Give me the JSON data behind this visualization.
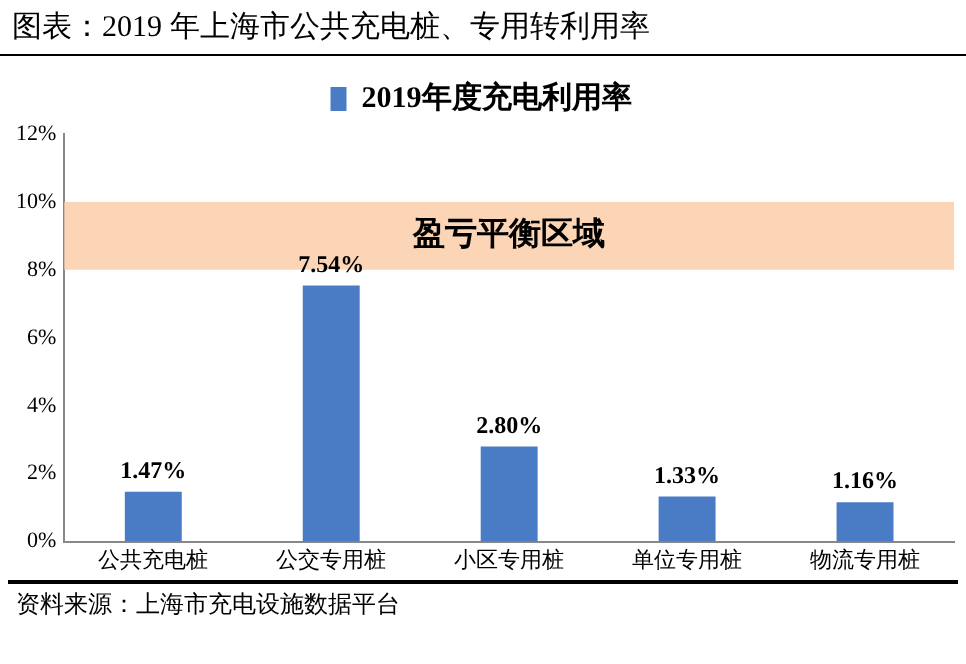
{
  "chart_data": {
    "type": "bar",
    "title": "图表：2019 年上海市公共充电桩、专用转利用率",
    "categories": [
      "公共充电桩",
      "公交专用桩",
      "小区专用桩",
      "单位专用桩",
      "物流专用桩"
    ],
    "series": [
      {
        "name": "2019年度充电利用率",
        "color": "#4a7cc6",
        "values": [
          1.47,
          7.54,
          2.8,
          1.33,
          1.16
        ],
        "value_labels": [
          "1.47%",
          "7.54%",
          "2.80%",
          "1.33%",
          "1.16%"
        ]
      }
    ],
    "ylim": [
      0,
      12
    ],
    "yticks": [
      {
        "value": 0,
        "label": "0%"
      },
      {
        "value": 2,
        "label": "2%"
      },
      {
        "value": 4,
        "label": "4%"
      },
      {
        "value": 6,
        "label": "6%"
      },
      {
        "value": 8,
        "label": "8%"
      },
      {
        "value": 10,
        "label": "10%"
      },
      {
        "value": 12,
        "label": "12%"
      }
    ],
    "bands": [
      {
        "axis": "y",
        "from": 8,
        "to": 10,
        "label": "盈亏平衡区域",
        "color": "#fbd5b5"
      }
    ],
    "grid": false,
    "legend": "top",
    "annotations": [
      "资料来源：上海市充电设施数据平台"
    ]
  }
}
